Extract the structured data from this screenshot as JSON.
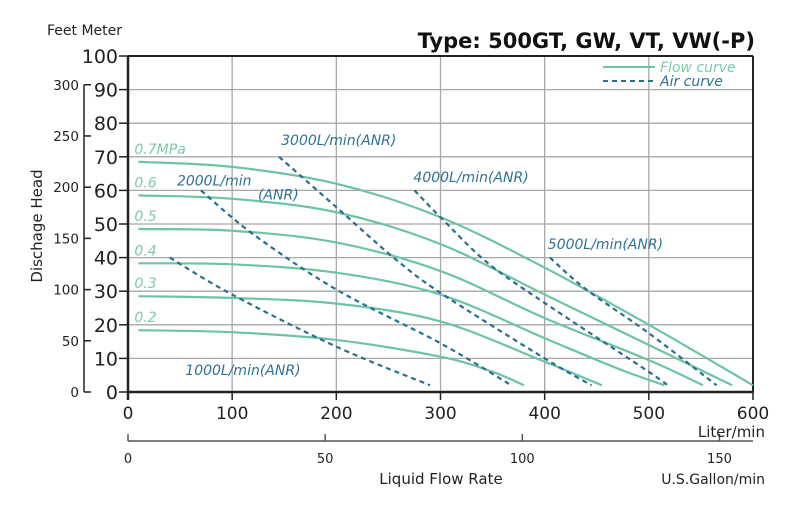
{
  "chart_data": {
    "type": "line",
    "title": "Type: 500GT, GW, VT, VW(-P)",
    "ylabel": "Dischage Head",
    "y_units_header": "Feet Meter",
    "xlabel": "Liquid Flow Rate",
    "x_unit_primary": "Liter/min",
    "x_unit_secondary": "U.S.Gallon/min",
    "xlim": [
      0,
      600
    ],
    "ylim": [
      0,
      100
    ],
    "x_ticks": [
      0,
      100,
      200,
      300,
      400,
      500,
      600
    ],
    "y_ticks_meter": [
      0,
      10,
      20,
      30,
      40,
      50,
      60,
      70,
      80,
      90,
      100
    ],
    "y_ticks_feet": [
      0,
      50,
      100,
      150,
      200,
      250,
      300
    ],
    "x_ticks_gallon": [
      0,
      50,
      100,
      150
    ],
    "grid": true,
    "legend": {
      "position": "top-right",
      "entries": [
        {
          "label": "Flow curve",
          "style": "solid",
          "color": "#6cc4a4"
        },
        {
          "label": "Air curve",
          "style": "dashed",
          "color": "#2b6f8e"
        }
      ]
    },
    "colors": {
      "flow": "#6cc4a4",
      "flow_label": "#7ccaa9",
      "air": "#2b6f8e",
      "air_label": "#2f7393",
      "grid": "#a8a8a8",
      "axis": "#222222"
    },
    "flow_series": [
      {
        "name": "0.7MPa",
        "label": "0.7MPa",
        "points": [
          [
            10,
            68.5
          ],
          [
            100,
            67
          ],
          [
            200,
            62
          ],
          [
            300,
            52
          ],
          [
            400,
            37
          ],
          [
            500,
            20
          ],
          [
            600,
            2
          ]
        ]
      },
      {
        "name": "0.6",
        "label": "0.6",
        "points": [
          [
            10,
            58.5
          ],
          [
            100,
            57.5
          ],
          [
            200,
            53.5
          ],
          [
            300,
            44
          ],
          [
            400,
            29
          ],
          [
            500,
            14
          ],
          [
            580,
            2
          ]
        ]
      },
      {
        "name": "0.5",
        "label": "0.5",
        "points": [
          [
            10,
            48.5
          ],
          [
            100,
            48
          ],
          [
            200,
            44.5
          ],
          [
            300,
            36
          ],
          [
            400,
            22
          ],
          [
            500,
            9.5
          ],
          [
            552,
            2
          ]
        ]
      },
      {
        "name": "0.4",
        "label": "0.4",
        "points": [
          [
            10,
            38.3
          ],
          [
            100,
            38
          ],
          [
            200,
            35.5
          ],
          [
            300,
            29
          ],
          [
            400,
            16
          ],
          [
            470,
            7
          ],
          [
            515,
            2
          ]
        ]
      },
      {
        "name": "0.3",
        "label": "0.3",
        "points": [
          [
            10,
            28.5
          ],
          [
            100,
            28
          ],
          [
            200,
            26.3
          ],
          [
            300,
            21
          ],
          [
            400,
            9
          ],
          [
            455,
            2
          ]
        ]
      },
      {
        "name": "0.2",
        "label": "0.2",
        "points": [
          [
            10,
            18.4
          ],
          [
            100,
            17.8
          ],
          [
            200,
            15.5
          ],
          [
            300,
            10.5
          ],
          [
            350,
            6
          ],
          [
            380,
            2
          ]
        ]
      }
    ],
    "air_series": [
      {
        "name": "1000L/min(ANR)",
        "label": "1000L/min(ANR)",
        "points": [
          [
            40,
            40
          ],
          [
            100,
            29
          ],
          [
            200,
            13.5
          ],
          [
            290,
            2
          ]
        ]
      },
      {
        "name": "2000L/min(ANR)",
        "label": "2000L/min",
        "label_sub": "(ANR)",
        "points": [
          [
            70,
            60
          ],
          [
            120,
            47
          ],
          [
            200,
            30.5
          ],
          [
            300,
            14.5
          ],
          [
            368,
            2
          ]
        ]
      },
      {
        "name": "3000L/min(ANR)",
        "label": "3000L/min(ANR)",
        "points": [
          [
            145,
            70
          ],
          [
            200,
            55
          ],
          [
            255,
            40
          ],
          [
            300,
            29.5
          ],
          [
            400,
            10
          ],
          [
            445,
            2
          ]
        ]
      },
      {
        "name": "4000L/min(ANR)",
        "label": "4000L/min(ANR)",
        "points": [
          [
            275,
            60
          ],
          [
            300,
            52
          ],
          [
            345,
            38.5
          ],
          [
            400,
            26.5
          ],
          [
            500,
            6
          ],
          [
            518,
            2
          ]
        ]
      },
      {
        "name": "5000L/min(ANR)",
        "label": "5000L/min(ANR)",
        "points": [
          [
            405,
            40
          ],
          [
            440,
            30.5
          ],
          [
            500,
            17.5
          ],
          [
            565,
            2
          ]
        ]
      }
    ]
  }
}
